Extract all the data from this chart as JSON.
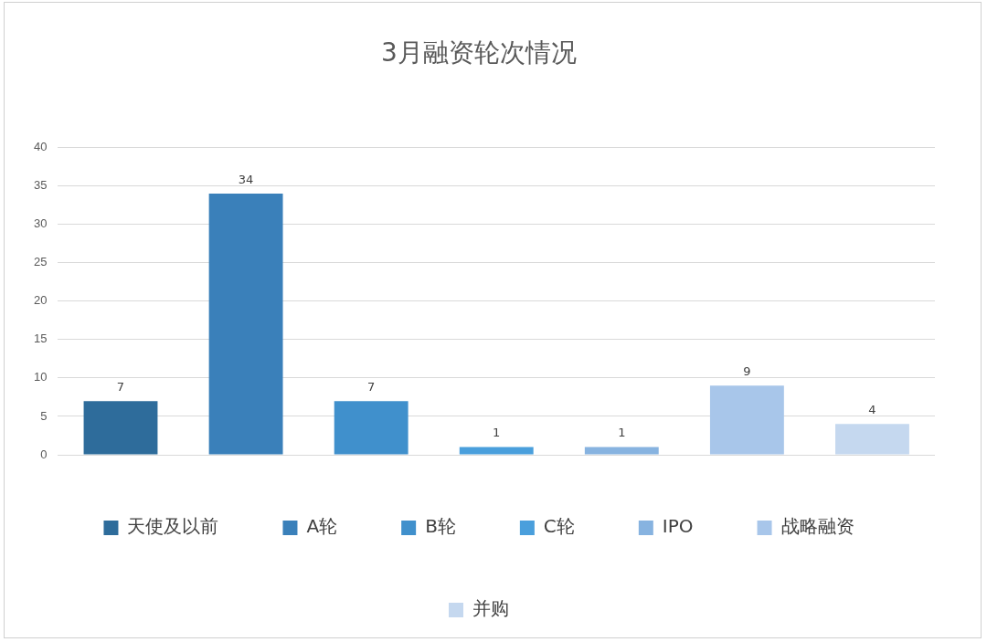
{
  "chart_data": {
    "type": "bar",
    "title": "3月融资轮次情况",
    "categories": [
      null
    ],
    "series": [
      {
        "name": "天使及以前",
        "color": "#2e6c9b",
        "values": [
          7
        ]
      },
      {
        "name": "A轮",
        "color": "#3a80ba",
        "values": [
          34
        ]
      },
      {
        "name": "B轮",
        "color": "#4090cc",
        "values": [
          7
        ]
      },
      {
        "name": "C轮",
        "color": "#4a9fdc",
        "values": [
          1
        ]
      },
      {
        "name": "IPO",
        "color": "#87b3e0",
        "values": [
          1
        ]
      },
      {
        "name": "战略融资",
        "color": "#a8c6ea",
        "values": [
          9
        ]
      },
      {
        "name": "并购",
        "color": "#c5d8ef",
        "values": [
          4
        ]
      }
    ],
    "ylim": [
      0,
      40
    ],
    "yticks": [
      0,
      5,
      10,
      15,
      20,
      25,
      30,
      35,
      40
    ],
    "grid": "y",
    "legend": "bottom",
    "data_labels": true
  }
}
